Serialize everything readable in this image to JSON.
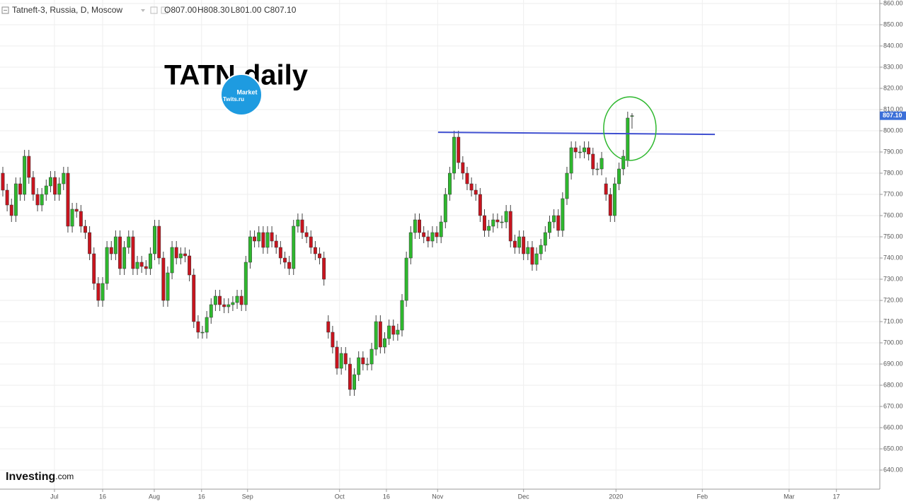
{
  "chart_data": {
    "type": "candlestick",
    "symbol": "Tatneft-3, Russia, D, Moscow",
    "ohlc_labels": [
      "O807.00",
      "H808.30",
      "L801.00",
      "C807.10"
    ],
    "title": "TATN daily",
    "logo": [
      "Market",
      "Twits.ru"
    ],
    "watermark": [
      "Investing",
      ".com"
    ],
    "up_color": "#2eb82e",
    "down_color": "#c8141e",
    "grid": true,
    "ylim": [
      640,
      860
    ],
    "yticks": [
      {
        "value": 640,
        "label": "640.00"
      },
      {
        "value": 650,
        "label": "650.00"
      },
      {
        "value": 660,
        "label": "660.00"
      },
      {
        "value": 670,
        "label": "670.00"
      },
      {
        "value": 680,
        "label": "680.00"
      },
      {
        "value": 690,
        "label": "690.00"
      },
      {
        "value": 700,
        "label": "700.00"
      },
      {
        "value": 710,
        "label": "710.00"
      },
      {
        "value": 720,
        "label": "720.00"
      },
      {
        "value": 730,
        "label": "730.00"
      },
      {
        "value": 740,
        "label": "740.00"
      },
      {
        "value": 750,
        "label": "750.00"
      },
      {
        "value": 760,
        "label": "760.00"
      },
      {
        "value": 770,
        "label": "770.00"
      },
      {
        "value": 780,
        "label": "780.00"
      },
      {
        "value": 790,
        "label": "790.00"
      },
      {
        "value": 800,
        "label": "800.00"
      },
      {
        "value": 810,
        "label": "810.00"
      },
      {
        "value": 820,
        "label": "820.00"
      },
      {
        "value": 830,
        "label": "830.00"
      },
      {
        "value": 840,
        "label": "840.00"
      },
      {
        "value": 850,
        "label": "850.00"
      },
      {
        "value": 860,
        "label": "860.00"
      }
    ],
    "xlim": [
      -0.65,
      202.1
    ],
    "xticks": [
      {
        "value": 11.9,
        "label": "Jul"
      },
      {
        "value": 23,
        "label": "16"
      },
      {
        "value": 34.9,
        "label": "Aug"
      },
      {
        "value": 45.8,
        "label": "16"
      },
      {
        "value": 56.4,
        "label": "Sep"
      },
      {
        "value": 77.6,
        "label": "Oct"
      },
      {
        "value": 88.4,
        "label": "16"
      },
      {
        "value": 100.2,
        "label": "Nov"
      },
      {
        "value": 120,
        "label": "Dec"
      },
      {
        "value": 141.3,
        "label": "2020"
      },
      {
        "value": 161.2,
        "label": "Feb"
      },
      {
        "value": 181.2,
        "label": "Mar"
      },
      {
        "value": 192.1,
        "label": "17"
      }
    ],
    "last_price": {
      "value": 807.1,
      "label": "807.10",
      "color": "#3b6fd8"
    },
    "trendline": {
      "x": [
        100.3,
        164.1
      ],
      "y": [
        799.3,
        798.3
      ],
      "color": "#3f4fd0"
    },
    "highlight": {
      "x": 144.5,
      "y": 801,
      "rx": 6.04,
      "ry": 15,
      "color": "#2eb82e"
    },
    "ohlc": [
      [
        780,
        783,
        769,
        772
      ],
      [
        772,
        775,
        762,
        765
      ],
      [
        765,
        768,
        757,
        760
      ],
      [
        760,
        778,
        757,
        775
      ],
      [
        775,
        778,
        767,
        770
      ],
      [
        770,
        791,
        767,
        788
      ],
      [
        788,
        791,
        775,
        778
      ],
      [
        778,
        781,
        767,
        770
      ],
      [
        770,
        773,
        762,
        765
      ],
      [
        765,
        773,
        762,
        770
      ],
      [
        770,
        777,
        767,
        774
      ],
      [
        774,
        781,
        771,
        778
      ],
      [
        778,
        781,
        767,
        770
      ],
      [
        770,
        778,
        767,
        775
      ],
      [
        775,
        783,
        772,
        780
      ],
      [
        780,
        783,
        752,
        755
      ],
      [
        755,
        766,
        752,
        763
      ],
      [
        763,
        766,
        759,
        762
      ],
      [
        762,
        765,
        752,
        755
      ],
      [
        755,
        758,
        749,
        752
      ],
      [
        752,
        755,
        739,
        742
      ],
      [
        742,
        745,
        725,
        728
      ],
      [
        728,
        731,
        717,
        720
      ],
      [
        720,
        731,
        717,
        728
      ],
      [
        728,
        748,
        725,
        745
      ],
      [
        745,
        748,
        739,
        742
      ],
      [
        742,
        753,
        739,
        750
      ],
      [
        750,
        753,
        732,
        735
      ],
      [
        735,
        748,
        732,
        745
      ],
      [
        745,
        753,
        742,
        750
      ],
      [
        750,
        753,
        732,
        735
      ],
      [
        735,
        741,
        732,
        738
      ],
      [
        738,
        741,
        733,
        736
      ],
      [
        736,
        739,
        732,
        735
      ],
      [
        735,
        745,
        732,
        742
      ],
      [
        742,
        758,
        739,
        755
      ],
      [
        755,
        758,
        737,
        740
      ],
      [
        740,
        743,
        717,
        720
      ],
      [
        720,
        736,
        717,
        733
      ],
      [
        733,
        748,
        730,
        745
      ],
      [
        745,
        748,
        737,
        740
      ],
      [
        740,
        745,
        737,
        742
      ],
      [
        742,
        745,
        738,
        741
      ],
      [
        741,
        744,
        729,
        732
      ],
      [
        732,
        735,
        707,
        710
      ],
      [
        710,
        713,
        702,
        705
      ],
      [
        705,
        708,
        702,
        705
      ],
      [
        705,
        715,
        702,
        712
      ],
      [
        712,
        721,
        709,
        718
      ],
      [
        718,
        725,
        715,
        722
      ],
      [
        722,
        725,
        715,
        718
      ],
      [
        718,
        721,
        714,
        717
      ],
      [
        717,
        721,
        714,
        718
      ],
      [
        718,
        722,
        715,
        719
      ],
      [
        719,
        725,
        716,
        722
      ],
      [
        722,
        725,
        715,
        718
      ],
      [
        718,
        741,
        715,
        738
      ],
      [
        738,
        753,
        735,
        750
      ],
      [
        750,
        753,
        745,
        748
      ],
      [
        748,
        755,
        745,
        752
      ],
      [
        752,
        755,
        742,
        745
      ],
      [
        745,
        755,
        742,
        752
      ],
      [
        752,
        755,
        745,
        748
      ],
      [
        748,
        751,
        742,
        745
      ],
      [
        745,
        748,
        737,
        740
      ],
      [
        740,
        743,
        735,
        738
      ],
      [
        738,
        741,
        732,
        735
      ],
      [
        735,
        758,
        732,
        755
      ],
      [
        755,
        761,
        752,
        758
      ],
      [
        758,
        761,
        749,
        752
      ],
      [
        752,
        755,
        747,
        750
      ],
      [
        750,
        753,
        742,
        745
      ],
      [
        745,
        748,
        739,
        742
      ],
      [
        742,
        745,
        737,
        740
      ],
      [
        740,
        743,
        727,
        730
      ],
      [
        710,
        713,
        702,
        705
      ],
      [
        705,
        708,
        695,
        698
      ],
      [
        698,
        701,
        685,
        688
      ],
      [
        688,
        698,
        685,
        695
      ],
      [
        695,
        698,
        687,
        690
      ],
      [
        690,
        693,
        675,
        678
      ],
      [
        678,
        688,
        675,
        685
      ],
      [
        685,
        696,
        682,
        693
      ],
      [
        693,
        696,
        687,
        690
      ],
      [
        690,
        693,
        687,
        690
      ],
      [
        690,
        700,
        687,
        697
      ],
      [
        697,
        713,
        694,
        710
      ],
      [
        710,
        713,
        695,
        698
      ],
      [
        698,
        705,
        695,
        702
      ],
      [
        702,
        711,
        699,
        708
      ],
      [
        708,
        711,
        701,
        704
      ],
      [
        704,
        709,
        701,
        706
      ],
      [
        706,
        723,
        703,
        720
      ],
      [
        720,
        743,
        717,
        740
      ],
      [
        740,
        755,
        737,
        752
      ],
      [
        752,
        761,
        749,
        758
      ],
      [
        758,
        761,
        749,
        752
      ],
      [
        752,
        755,
        747,
        750
      ],
      [
        750,
        753,
        745,
        748
      ],
      [
        748,
        755,
        745,
        752
      ],
      [
        752,
        755,
        747,
        750
      ],
      [
        750,
        760,
        747,
        757
      ],
      [
        757,
        773,
        754,
        770
      ],
      [
        770,
        783,
        767,
        780
      ],
      [
        780,
        800,
        777,
        797
      ],
      [
        797,
        800,
        782,
        785
      ],
      [
        785,
        788,
        777,
        780
      ],
      [
        780,
        783,
        772,
        775
      ],
      [
        775,
        778,
        769,
        772
      ],
      [
        772,
        775,
        767,
        770
      ],
      [
        770,
        773,
        757,
        760
      ],
      [
        760,
        763,
        750,
        753
      ],
      [
        753,
        758,
        750,
        755
      ],
      [
        755,
        761,
        752,
        758
      ],
      [
        758,
        761,
        754,
        757
      ],
      [
        757,
        760,
        754,
        757
      ],
      [
        757,
        765,
        754,
        762
      ],
      [
        762,
        765,
        745,
        748
      ],
      [
        748,
        751,
        742,
        745
      ],
      [
        745,
        753,
        742,
        750
      ],
      [
        750,
        753,
        739,
        742
      ],
      [
        742,
        748,
        739,
        745
      ],
      [
        745,
        748,
        734,
        737
      ],
      [
        737,
        745,
        734,
        742
      ],
      [
        742,
        749,
        739,
        746
      ],
      [
        746,
        755,
        743,
        752
      ],
      [
        752,
        760,
        749,
        757
      ],
      [
        757,
        763,
        754,
        760
      ],
      [
        760,
        763,
        750,
        753
      ],
      [
        753,
        771,
        750,
        768
      ],
      [
        768,
        783,
        765,
        780
      ],
      [
        780,
        795,
        777,
        792
      ],
      [
        792,
        795,
        787,
        790
      ],
      [
        790,
        793,
        787,
        790
      ],
      [
        790,
        795,
        787,
        792
      ],
      [
        792,
        795,
        786,
        789
      ],
      [
        789,
        792,
        779,
        782
      ],
      [
        782,
        785,
        779,
        782
      ],
      [
        782,
        790,
        779,
        787
      ],
      [
        775,
        778,
        767,
        770
      ],
      [
        770,
        773,
        757,
        760
      ],
      [
        760,
        778,
        757,
        775
      ],
      [
        775,
        785,
        772,
        782
      ],
      [
        782,
        791,
        779,
        788
      ],
      [
        786,
        809,
        783,
        806
      ],
      [
        807,
        808.3,
        801,
        807.1
      ]
    ]
  }
}
